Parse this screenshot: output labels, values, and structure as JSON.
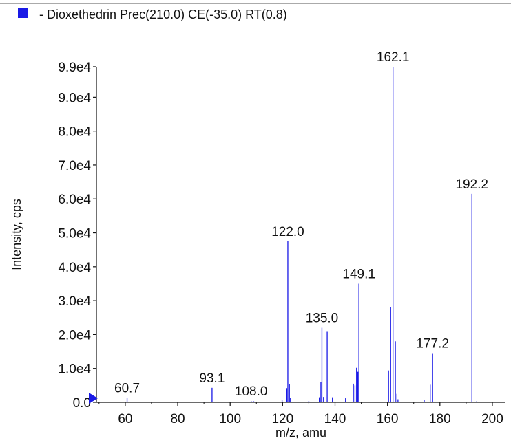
{
  "chart_data": {
    "type": "bar",
    "legend": {
      "label": "- Dioxethedrin Prec(210.0) CE(-35.0) RT(0.8)",
      "color": "#1a1ae6",
      "placement": "top-left"
    },
    "xlabel": "m/z, amu",
    "ylabel": "Intensity, cps",
    "xlim": [
      49,
      205
    ],
    "ylim": [
      0,
      99000
    ],
    "x_ticks": [
      {
        "value": 60,
        "label": "60"
      },
      {
        "value": 80,
        "label": "80"
      },
      {
        "value": 100,
        "label": "100"
      },
      {
        "value": 120,
        "label": "120"
      },
      {
        "value": 140,
        "label": "140"
      },
      {
        "value": 160,
        "label": "160"
      },
      {
        "value": 180,
        "label": "180"
      },
      {
        "value": 200,
        "label": "200"
      }
    ],
    "y_ticks": [
      {
        "value": 0,
        "label": "0.0"
      },
      {
        "value": 10000,
        "label": "1.0e4"
      },
      {
        "value": 20000,
        "label": "2.0e4"
      },
      {
        "value": 30000,
        "label": "3.0e4"
      },
      {
        "value": 40000,
        "label": "4.0e4"
      },
      {
        "value": 50000,
        "label": "5.0e4"
      },
      {
        "value": 60000,
        "label": "6.0e4"
      },
      {
        "value": 70000,
        "label": "7.0e4"
      },
      {
        "value": 80000,
        "label": "8.0e4"
      },
      {
        "value": 90000,
        "label": "9.0e4"
      },
      {
        "value": 99000,
        "label": "9.9e4"
      }
    ],
    "series": [
      {
        "color": "#1a1ae6",
        "peaks": [
          {
            "mz": 60.7,
            "intensity": 1300
          },
          {
            "mz": 93.1,
            "intensity": 4300
          },
          {
            "mz": 108.0,
            "intensity": 400
          },
          {
            "mz": 109.0,
            "intensity": 300
          },
          {
            "mz": 119.8,
            "intensity": 700
          },
          {
            "mz": 121.6,
            "intensity": 4200
          },
          {
            "mz": 122.0,
            "intensity": 47500
          },
          {
            "mz": 122.6,
            "intensity": 5400
          },
          {
            "mz": 123.0,
            "intensity": 1300
          },
          {
            "mz": 130.0,
            "intensity": 400
          },
          {
            "mz": 134.0,
            "intensity": 1500
          },
          {
            "mz": 134.6,
            "intensity": 6000
          },
          {
            "mz": 135.0,
            "intensity": 22000
          },
          {
            "mz": 135.6,
            "intensity": 1600
          },
          {
            "mz": 137.0,
            "intensity": 21000
          },
          {
            "mz": 139.0,
            "intensity": 1500
          },
          {
            "mz": 144.0,
            "intensity": 1200
          },
          {
            "mz": 147.0,
            "intensity": 5500
          },
          {
            "mz": 147.6,
            "intensity": 5000
          },
          {
            "mz": 148.2,
            "intensity": 10200
          },
          {
            "mz": 149.1,
            "intensity": 35000
          },
          {
            "mz": 148.7,
            "intensity": 9000
          },
          {
            "mz": 160.4,
            "intensity": 9400
          },
          {
            "mz": 161.2,
            "intensity": 28000
          },
          {
            "mz": 162.1,
            "intensity": 99000
          },
          {
            "mz": 163.0,
            "intensity": 18000
          },
          {
            "mz": 163.6,
            "intensity": 2500
          },
          {
            "mz": 164.0,
            "intensity": 900
          },
          {
            "mz": 174.0,
            "intensity": 700
          },
          {
            "mz": 176.3,
            "intensity": 5200
          },
          {
            "mz": 177.2,
            "intensity": 14500
          },
          {
            "mz": 192.2,
            "intensity": 61500
          },
          {
            "mz": 194.0,
            "intensity": 300
          }
        ]
      }
    ],
    "peak_labels": [
      {
        "mz": 60.7,
        "intensity": 1300,
        "text": "60.7"
      },
      {
        "mz": 93.1,
        "intensity": 4300,
        "text": "93.1"
      },
      {
        "mz": 108.0,
        "intensity": 400,
        "text": "108.0"
      },
      {
        "mz": 122.0,
        "intensity": 47500,
        "text": "122.0"
      },
      {
        "mz": 135.0,
        "intensity": 22000,
        "text": "135.0"
      },
      {
        "mz": 149.1,
        "intensity": 35000,
        "text": "149.1"
      },
      {
        "mz": 162.1,
        "intensity": 99000,
        "text": "162.1"
      },
      {
        "mz": 177.2,
        "intensity": 14500,
        "text": "177.2"
      },
      {
        "mz": 192.2,
        "intensity": 61500,
        "text": "192.2"
      }
    ],
    "grid": false
  }
}
